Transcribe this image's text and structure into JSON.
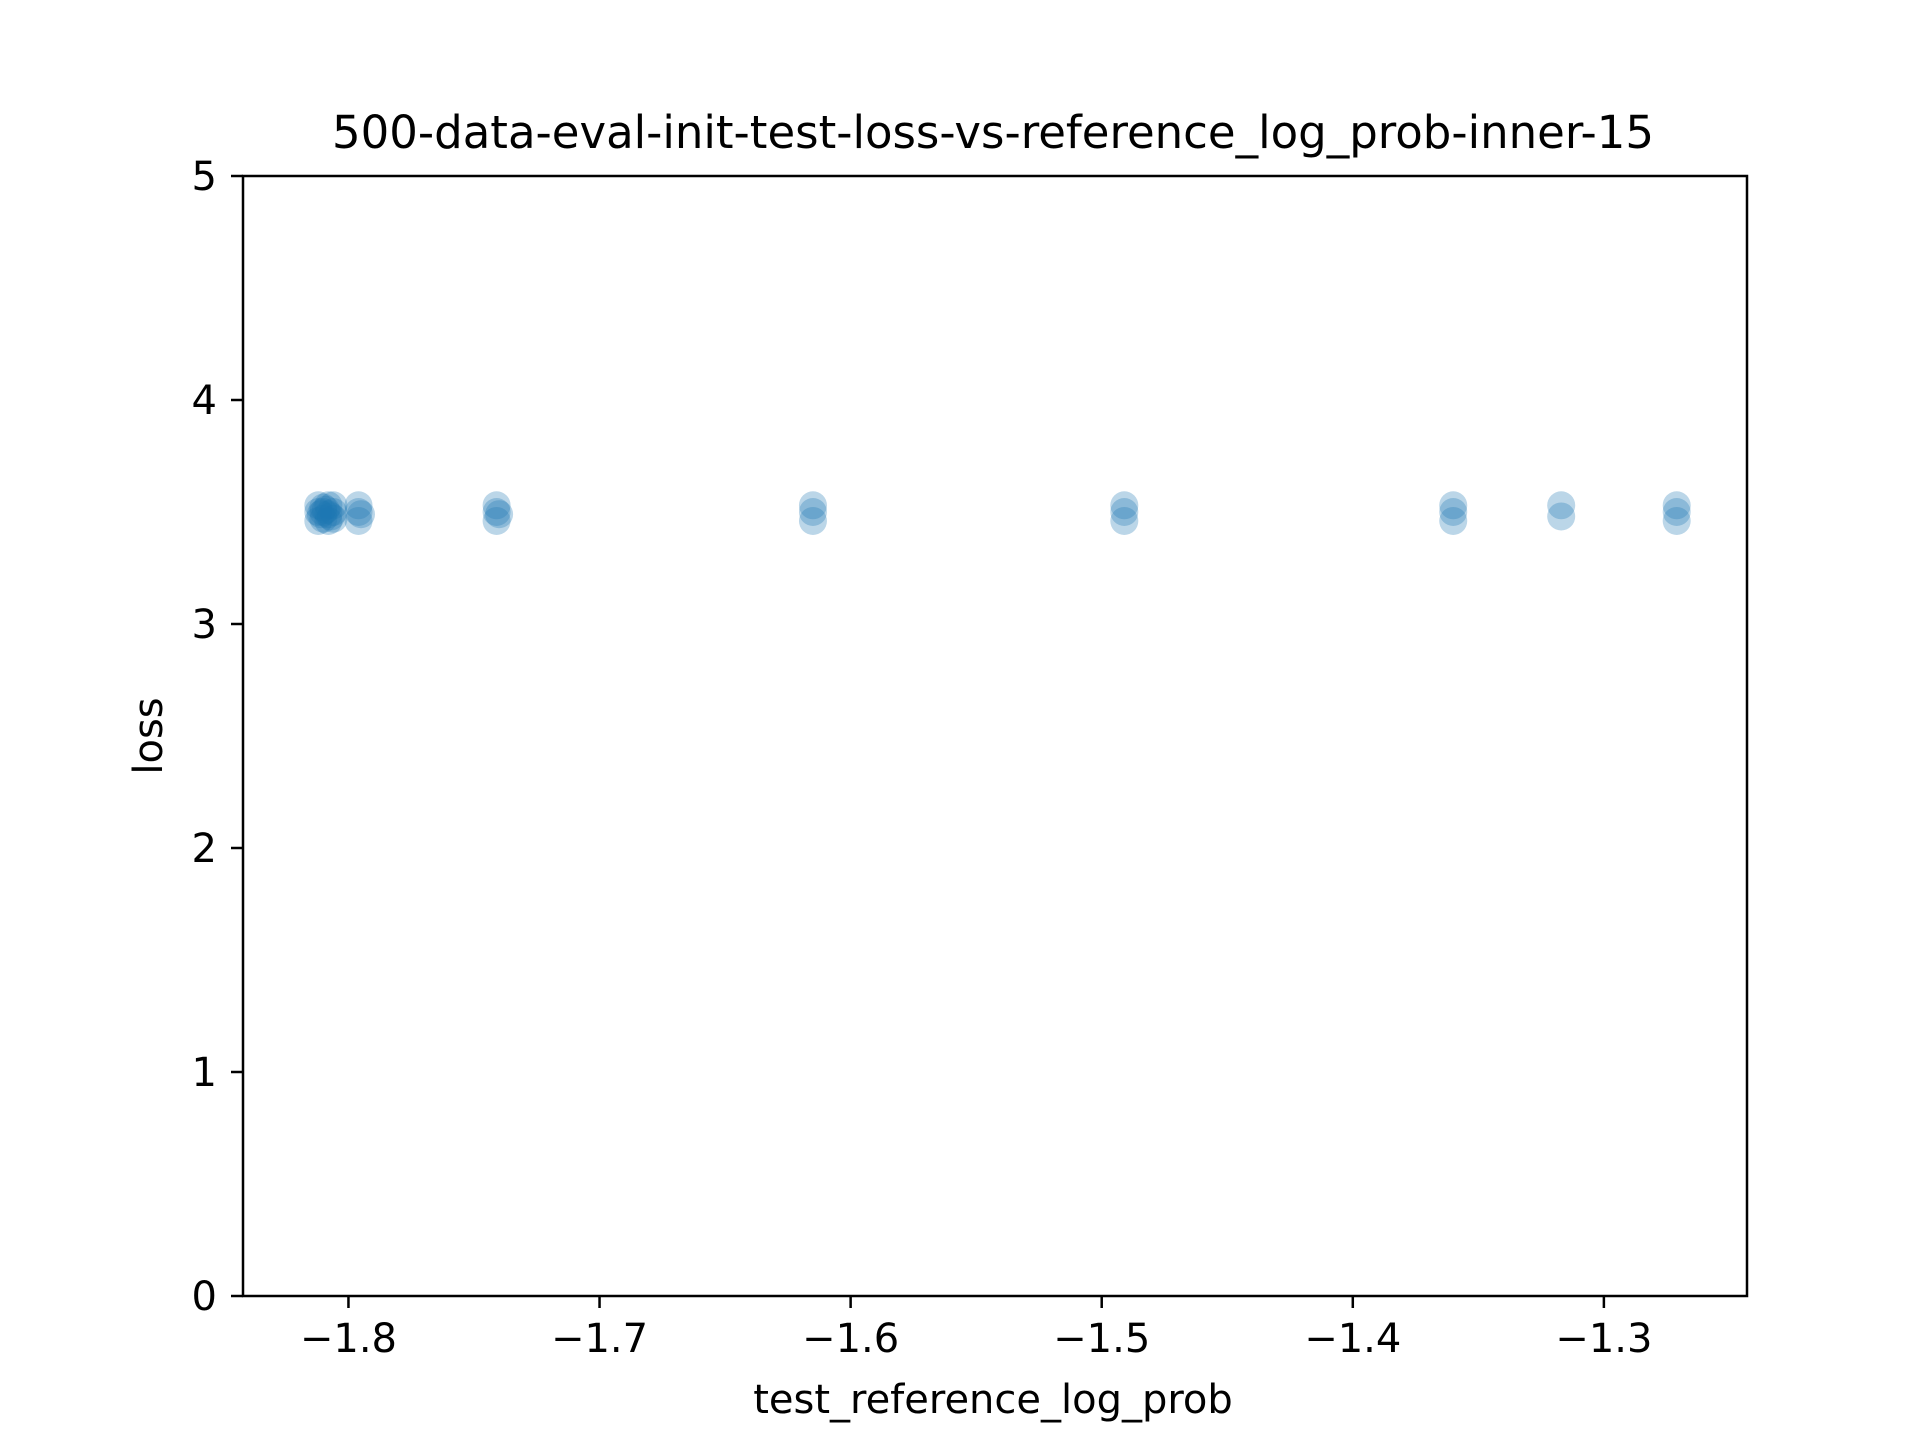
{
  "chart_data": {
    "type": "scatter",
    "title": "500-data-eval-init-test-loss-vs-reference_log_prob-inner-15",
    "xlabel": "test_reference_log_prob",
    "ylabel": "loss",
    "xlim": [
      -1.842,
      -1.243
    ],
    "ylim": [
      0,
      5
    ],
    "x_ticks": [
      {
        "value": -1.8,
        "label": "−1.8"
      },
      {
        "value": -1.7,
        "label": "−1.7"
      },
      {
        "value": -1.6,
        "label": "−1.6"
      },
      {
        "value": -1.5,
        "label": "−1.5"
      },
      {
        "value": -1.4,
        "label": "−1.4"
      },
      {
        "value": -1.3,
        "label": "−1.3"
      }
    ],
    "y_ticks": [
      {
        "value": 0,
        "label": "0"
      },
      {
        "value": 1,
        "label": "1"
      },
      {
        "value": 2,
        "label": "2"
      },
      {
        "value": 3,
        "label": "3"
      },
      {
        "value": 4,
        "label": "4"
      },
      {
        "value": 5,
        "label": "5"
      }
    ],
    "grid": false,
    "marker_color": "#1f77b4",
    "marker_alpha": 0.3,
    "points": [
      {
        "x": -1.812,
        "y": 3.5
      },
      {
        "x": -1.812,
        "y": 3.46
      },
      {
        "x": -1.812,
        "y": 3.53
      },
      {
        "x": -1.81,
        "y": 3.5
      },
      {
        "x": -1.81,
        "y": 3.47
      },
      {
        "x": -1.81,
        "y": 3.52
      },
      {
        "x": -1.808,
        "y": 3.49
      },
      {
        "x": -1.808,
        "y": 3.53
      },
      {
        "x": -1.808,
        "y": 3.46
      },
      {
        "x": -1.806,
        "y": 3.5
      },
      {
        "x": -1.806,
        "y": 3.47
      },
      {
        "x": -1.806,
        "y": 3.53
      },
      {
        "x": -1.811,
        "y": 3.49
      },
      {
        "x": -1.809,
        "y": 3.51
      },
      {
        "x": -1.807,
        "y": 3.48
      },
      {
        "x": -1.796,
        "y": 3.5
      },
      {
        "x": -1.796,
        "y": 3.46
      },
      {
        "x": -1.796,
        "y": 3.53
      },
      {
        "x": -1.795,
        "y": 3.49
      },
      {
        "x": -1.741,
        "y": 3.5
      },
      {
        "x": -1.741,
        "y": 3.46
      },
      {
        "x": -1.741,
        "y": 3.53
      },
      {
        "x": -1.74,
        "y": 3.49
      },
      {
        "x": -1.615,
        "y": 3.5
      },
      {
        "x": -1.615,
        "y": 3.46
      },
      {
        "x": -1.615,
        "y": 3.53
      },
      {
        "x": -1.491,
        "y": 3.5
      },
      {
        "x": -1.491,
        "y": 3.46
      },
      {
        "x": -1.491,
        "y": 3.53
      },
      {
        "x": -1.36,
        "y": 3.5
      },
      {
        "x": -1.36,
        "y": 3.46
      },
      {
        "x": -1.36,
        "y": 3.53
      },
      {
        "x": -1.317,
        "y": 3.48
      },
      {
        "x": -1.317,
        "y": 3.53
      },
      {
        "x": -1.271,
        "y": 3.5
      },
      {
        "x": -1.271,
        "y": 3.46
      },
      {
        "x": -1.271,
        "y": 3.53
      }
    ]
  }
}
